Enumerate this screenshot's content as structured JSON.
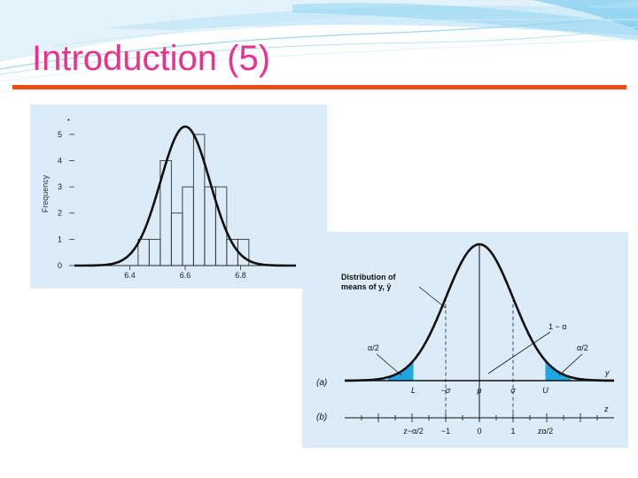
{
  "slide": {
    "title": "Introduction (5)",
    "title_color": "#e8328c",
    "rule_color": "#f04a16",
    "panel_bg": "#dcebf8",
    "tail_color": "#1ea7e1"
  },
  "chart_data": [
    {
      "type": "bar",
      "ylabel": "Frequency",
      "yticks": [
        "0",
        "1",
        "2",
        "3",
        "4",
        "5"
      ],
      "xticks": [
        {
          "label": "6.4",
          "x": 6.4
        },
        {
          "label": "6.6",
          "x": 6.6
        },
        {
          "label": "6.8",
          "x": 6.8
        }
      ],
      "xlim": [
        6.2,
        7.0
      ],
      "ylim": [
        0,
        5.4
      ],
      "curve": {
        "mean": 6.6,
        "sd": 0.089,
        "peak": 5.3
      },
      "bars": [
        {
          "x0": 6.43,
          "x1": 6.47,
          "value": 1
        },
        {
          "x0": 6.47,
          "x1": 6.51,
          "value": 1
        },
        {
          "x0": 6.51,
          "x1": 6.55,
          "value": 4
        },
        {
          "x0": 6.55,
          "x1": 6.59,
          "value": 2
        },
        {
          "x0": 6.59,
          "x1": 6.63,
          "value": 3
        },
        {
          "x0": 6.63,
          "x1": 6.67,
          "value": 5
        },
        {
          "x0": 6.67,
          "x1": 6.71,
          "value": 3
        },
        {
          "x0": 6.71,
          "x1": 6.75,
          "value": 3
        },
        {
          "x0": 6.75,
          "x1": 6.79,
          "value": 1
        },
        {
          "x0": 6.79,
          "x1": 6.83,
          "value": 1
        }
      ]
    },
    {
      "type": "area",
      "curve_label": "Distribution of\nmeans of y, ȳ",
      "one_minus_alpha": "1 − α",
      "tail_left": "α/2",
      "tail_right": "α/2",
      "axis_a": {
        "tag": "(a)",
        "var": "y",
        "labels": [
          {
            "label": "L",
            "z": -1.96
          },
          {
            "label": "−σ",
            "z": -1
          },
          {
            "label": "μ",
            "z": 0
          },
          {
            "label": "σ",
            "z": 1
          },
          {
            "label": "U",
            "z": 1.96
          }
        ]
      },
      "axis_b": {
        "tag": "(b)",
        "var": "z",
        "labels": [
          {
            "label": "z−α/2",
            "z": -1.96
          },
          {
            "label": "−1",
            "z": -1
          },
          {
            "label": "0",
            "z": 0
          },
          {
            "label": "1",
            "z": 1
          },
          {
            "label": "zα/2",
            "z": 1.96
          }
        ]
      },
      "xlim": [
        -4,
        4
      ],
      "tails": {
        "lower": -1.96,
        "upper": 1.96
      }
    }
  ]
}
